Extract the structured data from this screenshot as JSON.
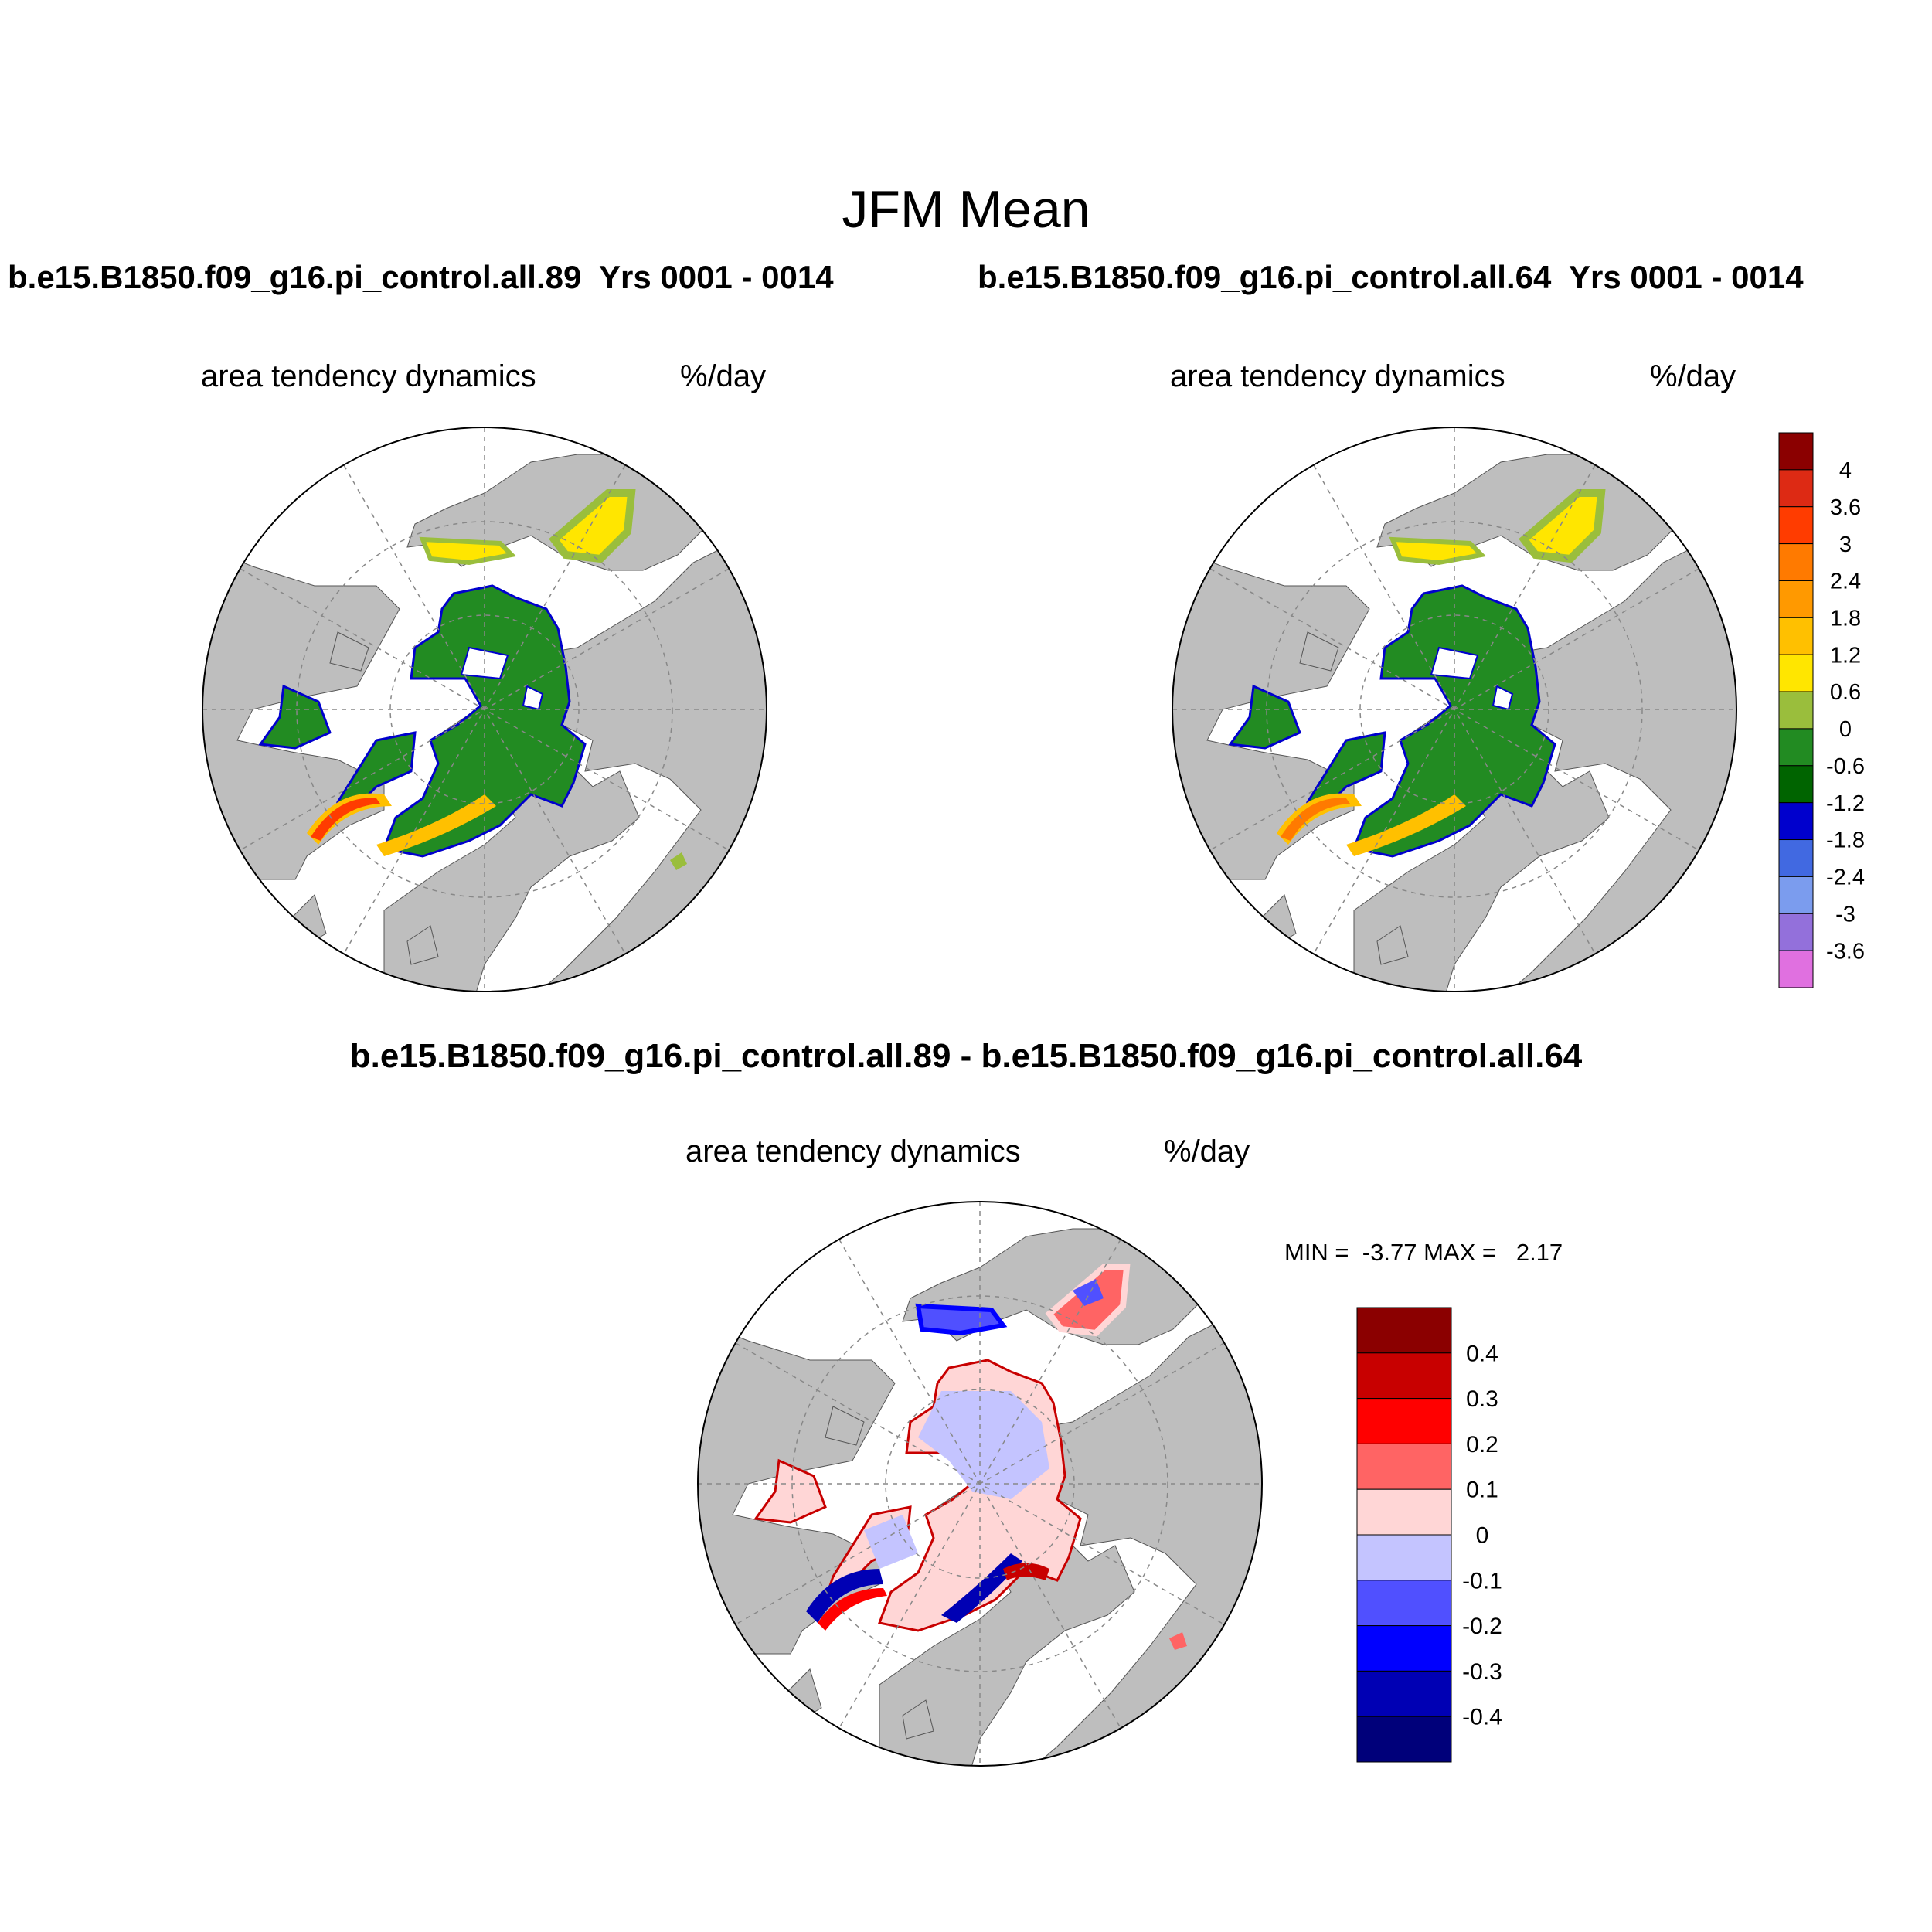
{
  "title": "JFM Mean",
  "panels": [
    {
      "case": "b.e15.B1850.f09_g16.pi_control.all.89",
      "years": "Yrs 0001 - 0014",
      "variable": "area tendency dynamics",
      "units": "%/day"
    },
    {
      "case": "b.e15.B1850.f09_g16.pi_control.all.64",
      "years": "Yrs 0001 - 0014",
      "variable": "area tendency dynamics",
      "units": "%/day"
    }
  ],
  "difference": {
    "title": "b.e15.B1850.f09_g16.pi_control.all.89 - b.e15.B1850.f09_g16.pi_control.all.64",
    "variable": "area tendency dynamics",
    "units": "%/day",
    "min_label": "MIN =",
    "min_value": "-3.77",
    "max_label": "MAX =",
    "max_value": "2.17"
  },
  "colorbar_main": {
    "labels": [
      "4",
      "3.6",
      "3",
      "2.4",
      "1.8",
      "1.2",
      "0.6",
      "0",
      "-0.6",
      "-1.2",
      "-1.8",
      "-2.4",
      "-3",
      "-3.6"
    ],
    "colors": [
      "#8b0000",
      "#dd2a14",
      "#ff3c00",
      "#ff7a00",
      "#ff9900",
      "#ffc000",
      "#ffe600",
      "#9abe3c",
      "#228b22",
      "#006400",
      "#0000cd",
      "#4169e1",
      "#7b9cee",
      "#9370db",
      "#e070e0"
    ]
  },
  "colorbar_diff": {
    "labels": [
      "0.4",
      "0.3",
      "0.2",
      "0.1",
      "0",
      "-0.1",
      "-0.2",
      "-0.3",
      "-0.4"
    ],
    "colors": [
      "#8b0000",
      "#c80000",
      "#ff0000",
      "#ff6464",
      "#ffd6d6",
      "#c4c4ff",
      "#5050ff",
      "#0000ff",
      "#0000b4",
      "#00007a"
    ]
  },
  "map_colors": {
    "land": "#bebebe",
    "ocean": "#ffffff",
    "ice_interior": "#228b22",
    "ice_edge_positive": "#ffc000",
    "diff_background": "#ffd6d6",
    "diff_negative": "#c4c4ff"
  }
}
